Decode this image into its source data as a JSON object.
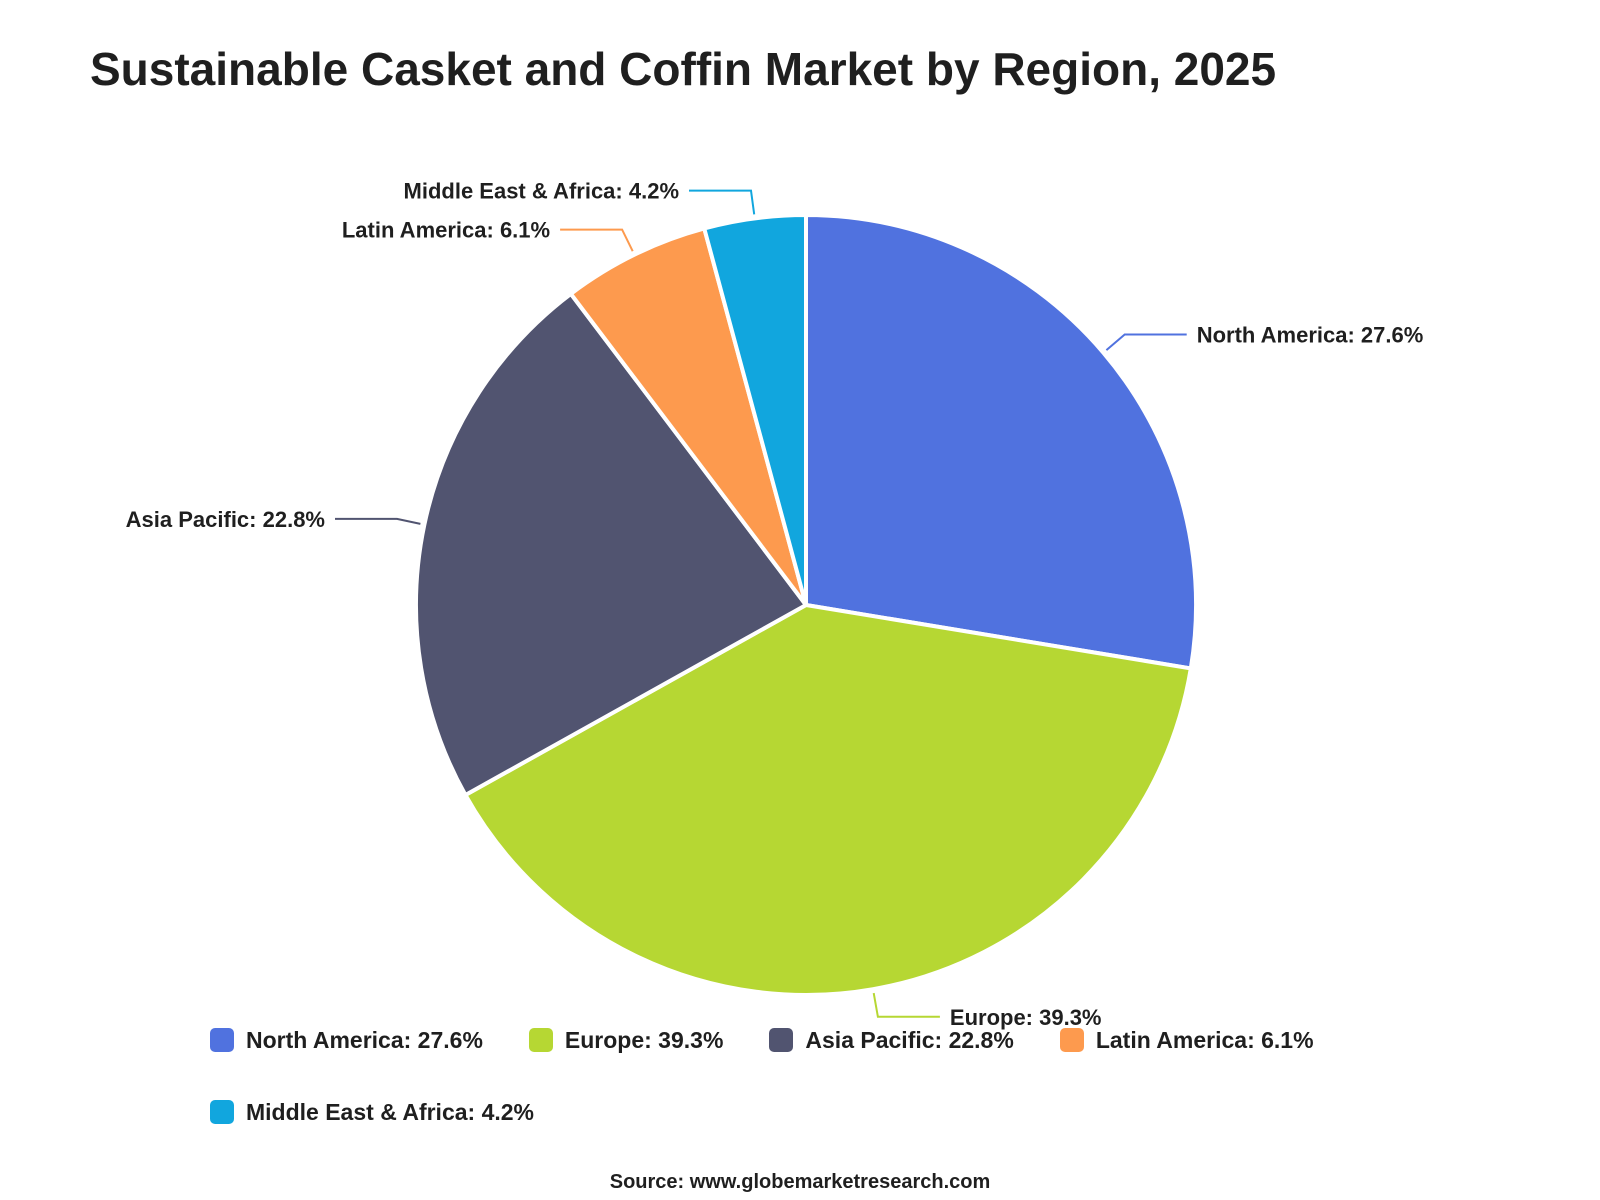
{
  "chart_data": {
    "type": "pie",
    "title": "Sustainable Casket and Coffin Market by Region, 2025",
    "slices": [
      {
        "label": "North America",
        "value": 27.6,
        "display": "North America: 27.6%",
        "color": "#5072df"
      },
      {
        "label": "Europe",
        "value": 39.3,
        "display": "Europe: 39.3%",
        "color": "#b6d733"
      },
      {
        "label": "Asia Pacific",
        "value": 22.8,
        "display": "Asia Pacific: 22.8%",
        "color": "#515470"
      },
      {
        "label": "Latin America",
        "value": 6.1,
        "display": "Latin America: 6.1%",
        "color": "#fd9a4e"
      },
      {
        "label": "Middle East & Africa",
        "value": 4.2,
        "display": "Middle East & Africa: 4.2%",
        "color": "#11a6de"
      }
    ],
    "legend_position": "bottom",
    "source": "Source: www.globemarketresearch.com"
  }
}
